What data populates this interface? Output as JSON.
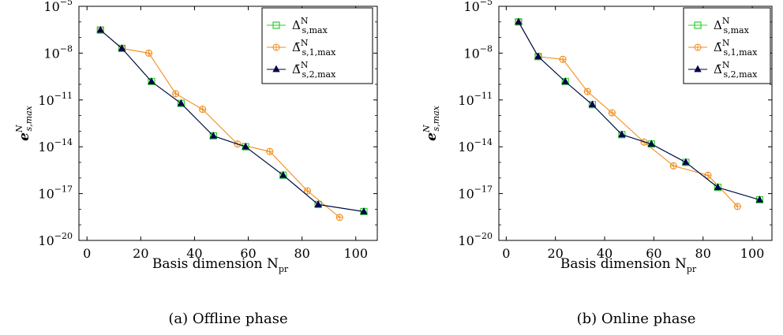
{
  "figure": {
    "panel_a_caption": "(a) Offline phase",
    "panel_b_caption": "(b) Online phase",
    "xlabel": "Basis dimension N",
    "xlabel_sub": "pr",
    "ylabel": "e",
    "ylabel_sup": "N",
    "ylabel_sub": "s,max",
    "legend": [
      {
        "symbol": "Δ",
        "sup": "N",
        "sub": "s,max"
      },
      {
        "symbol": "Δ̄",
        "sup": "N",
        "sub": "s,1,max"
      },
      {
        "symbol": "Δ̄",
        "sup": "N",
        "sub": "s,2,max"
      }
    ]
  },
  "colors": {
    "series_1": "#33cc33",
    "series_2": "#f28e1c",
    "series_3": "#00004d"
  },
  "chart_data": [
    {
      "type": "line",
      "title": "(a) Offline phase",
      "xlabel": "Basis dimension N_pr",
      "ylabel": "e^N_s,max",
      "xlim": [
        -3,
        108
      ],
      "xticks": [
        0,
        20,
        40,
        60,
        80,
        100
      ],
      "ylim_exp": [
        -20,
        -5
      ],
      "yticks_exp": [
        -20,
        -17,
        -14,
        -11,
        -8,
        -5
      ],
      "yscale": "log",
      "legend_position": "top-right",
      "series": [
        {
          "name": "Δ^N_s,max",
          "marker": "square",
          "x": [
            5,
            13,
            24,
            35,
            47,
            59,
            73,
            86,
            103
          ],
          "y": [
            3e-07,
            2e-08,
            1.5e-10,
            6e-12,
            5e-14,
            1e-14,
            1.5e-16,
            2e-18,
            7e-19
          ]
        },
        {
          "name": "Δ̄^N_s,1,max",
          "marker": "oplus",
          "x": [
            5,
            13,
            23,
            33,
            43,
            56,
            68,
            82,
            94
          ],
          "y": [
            3e-07,
            2e-08,
            1e-08,
            2.5e-11,
            2.5e-12,
            1.5e-14,
            5e-15,
            1.5e-17,
            3e-19
          ]
        },
        {
          "name": "Δ̄^N_s,2,max",
          "marker": "triangle",
          "x": [
            5,
            13,
            24,
            35,
            47,
            59,
            73,
            86,
            103
          ],
          "y": [
            3e-07,
            2e-08,
            1.5e-10,
            6e-12,
            5e-14,
            1e-14,
            1.5e-16,
            2e-18,
            7e-19
          ]
        }
      ]
    },
    {
      "type": "line",
      "title": "(b) Online phase",
      "xlabel": "Basis dimension N_pr",
      "ylabel": "e^N_s,max",
      "xlim": [
        -3,
        108
      ],
      "xticks": [
        0,
        20,
        40,
        60,
        80,
        100
      ],
      "ylim_exp": [
        -20,
        -5
      ],
      "yticks_exp": [
        -20,
        -17,
        -14,
        -11,
        -8,
        -5
      ],
      "yscale": "log",
      "legend_position": "top-right",
      "series": [
        {
          "name": "Δ^N_s,max",
          "marker": "square",
          "x": [
            5,
            13,
            24,
            35,
            47,
            59,
            73,
            86,
            103
          ],
          "y": [
            1e-06,
            6e-09,
            1.5e-10,
            5e-12,
            6e-14,
            1.5e-14,
            1e-15,
            2.5e-17,
            4e-18
          ]
        },
        {
          "name": "Δ̄^N_s,1,max",
          "marker": "oplus",
          "x": [
            5,
            13,
            23,
            33,
            43,
            56,
            68,
            82,
            94
          ],
          "y": [
            1e-06,
            6e-09,
            4e-09,
            3.5e-11,
            1.5e-12,
            2e-14,
            6e-16,
            1.5e-16,
            1.5e-18
          ]
        },
        {
          "name": "Δ̄^N_s,2,max",
          "marker": "triangle",
          "x": [
            5,
            13,
            24,
            35,
            47,
            59,
            73,
            86,
            103
          ],
          "y": [
            1e-06,
            6e-09,
            1.5e-10,
            5e-12,
            6e-14,
            1.5e-14,
            1e-15,
            2.5e-17,
            4e-18
          ]
        }
      ]
    }
  ]
}
